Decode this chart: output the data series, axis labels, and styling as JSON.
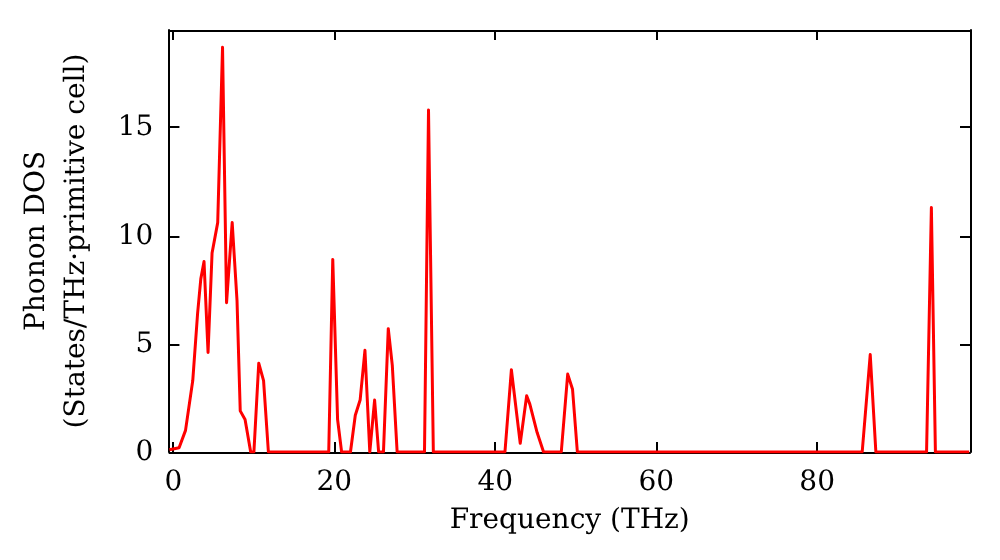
{
  "chart_data": {
    "type": "line",
    "xlabel": "Frequency (THz)",
    "ylabel": "Phonon DOS\n(States/THz·primitive cell)",
    "x": [
      -0.5,
      0.7,
      1.5,
      2.4,
      3.0,
      3.4,
      3.8,
      4.3,
      4.8,
      5.5,
      6.1,
      6.6,
      7.3,
      7.9,
      8.3,
      8.9,
      9.6,
      10.0,
      10.6,
      11.2,
      11.8,
      19.3,
      19.8,
      20.4,
      20.9,
      22.0,
      22.6,
      23.2,
      23.8,
      24.4,
      25.0,
      25.5,
      26.1,
      26.7,
      27.2,
      27.8,
      31.2,
      31.7,
      32.3,
      41.2,
      42.0,
      43.1,
      43.9,
      44.3,
      45.2,
      46.0,
      48.2,
      49.0,
      49.6,
      50.2,
      85.6,
      86.6,
      87.3,
      93.6,
      94.2,
      94.7,
      98.9
    ],
    "series": [
      {
        "color": "#ff0000",
        "values": [
          0.1,
          0.2,
          1.0,
          3.3,
          6.4,
          8.0,
          8.8,
          4.6,
          9.2,
          10.6,
          18.7,
          6.9,
          10.6,
          7.0,
          1.9,
          1.5,
          0,
          0,
          4.1,
          3.3,
          0,
          0,
          8.9,
          1.5,
          0,
          0,
          1.7,
          2.4,
          4.7,
          0,
          2.4,
          0,
          0,
          5.7,
          4.0,
          0,
          0,
          15.8,
          0,
          0,
          3.8,
          0.4,
          2.6,
          2.2,
          0.9,
          0,
          0,
          3.6,
          2.9,
          0,
          0,
          4.5,
          0,
          0,
          11.3,
          0,
          0
        ]
      }
    ],
    "xlim": [
      -0.5,
      99
    ],
    "ylim": [
      0,
      19.5
    ],
    "xticks": [
      0,
      20,
      40,
      60,
      80
    ],
    "yticks": [
      0,
      5,
      10,
      15
    ],
    "grid": false,
    "marker": "none",
    "line_style": "solid"
  }
}
